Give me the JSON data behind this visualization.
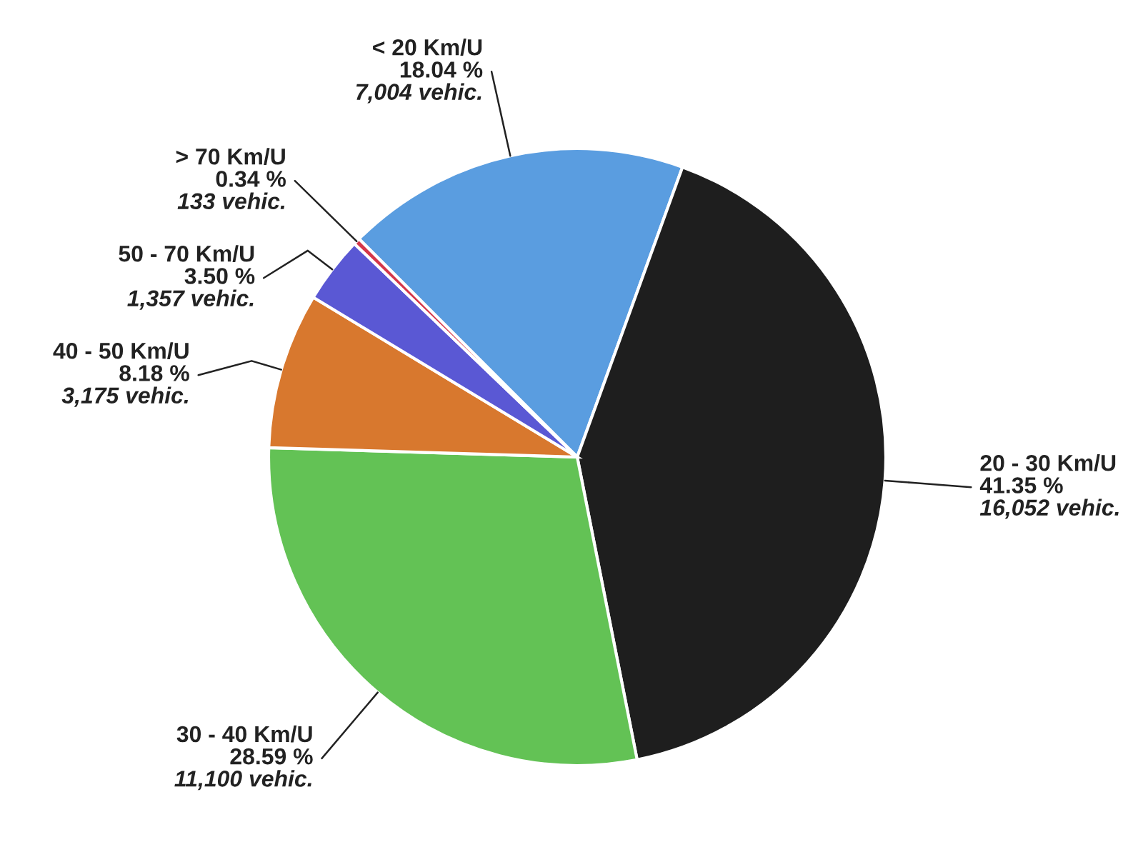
{
  "chart_data": {
    "type": "pie",
    "categories": [
      "< 20 Km/U",
      "20 - 30 Km/U",
      "30 - 40 Km/U",
      "40 - 50 Km/U",
      "50 - 70 Km/U",
      "> 70 Km/U"
    ],
    "values": [
      7004,
      16052,
      11100,
      3175,
      1357,
      133
    ],
    "value_labels": [
      "18.04 %\n7,004 vehic.",
      "41.35 %\n16,052 vehic.",
      "28.59 %\n11,100 vehic.",
      "8.18 %\n3,175 vehic.",
      "3.50 %\n1,357 vehic.",
      "0.34 %\n133 vehic."
    ],
    "colors": [
      "#5a9de0",
      "#1e1e1e",
      "#63c255",
      "#d8782e",
      "#5a58d4",
      "#d4364a"
    ]
  }
}
